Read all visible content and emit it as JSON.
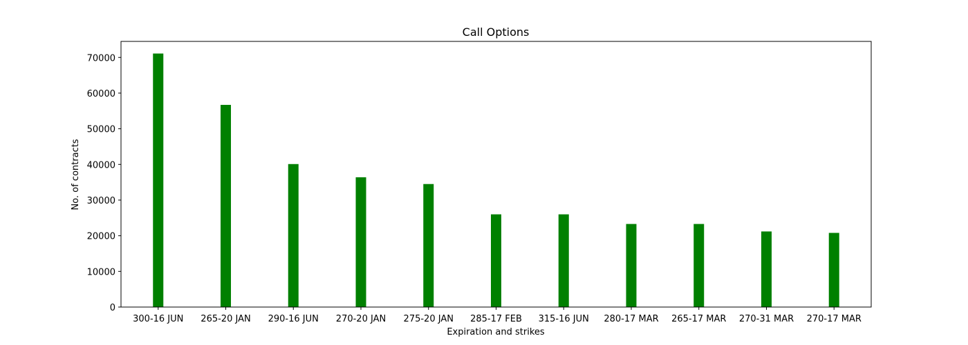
{
  "chart_data": {
    "type": "bar",
    "title": "Call Options",
    "xlabel": "Expiration and strikes",
    "ylabel": "No. of contracts",
    "categories": [
      "300-16 JUN",
      "265-20 JAN",
      "290-16 JUN",
      "270-20 JAN",
      "275-20 JAN",
      "285-17 FEB",
      "315-16 JUN",
      "280-17 MAR",
      "265-17 MAR",
      "270-31 MAR",
      "270-17 MAR"
    ],
    "values": [
      71100,
      56700,
      40100,
      36400,
      34500,
      26000,
      26000,
      23300,
      23300,
      21200,
      20800
    ],
    "ylim": [
      0,
      74500
    ],
    "yticks": [
      0,
      10000,
      20000,
      30000,
      40000,
      50000,
      60000,
      70000
    ],
    "bar_color": "#008000",
    "grid": false,
    "legend": false
  }
}
